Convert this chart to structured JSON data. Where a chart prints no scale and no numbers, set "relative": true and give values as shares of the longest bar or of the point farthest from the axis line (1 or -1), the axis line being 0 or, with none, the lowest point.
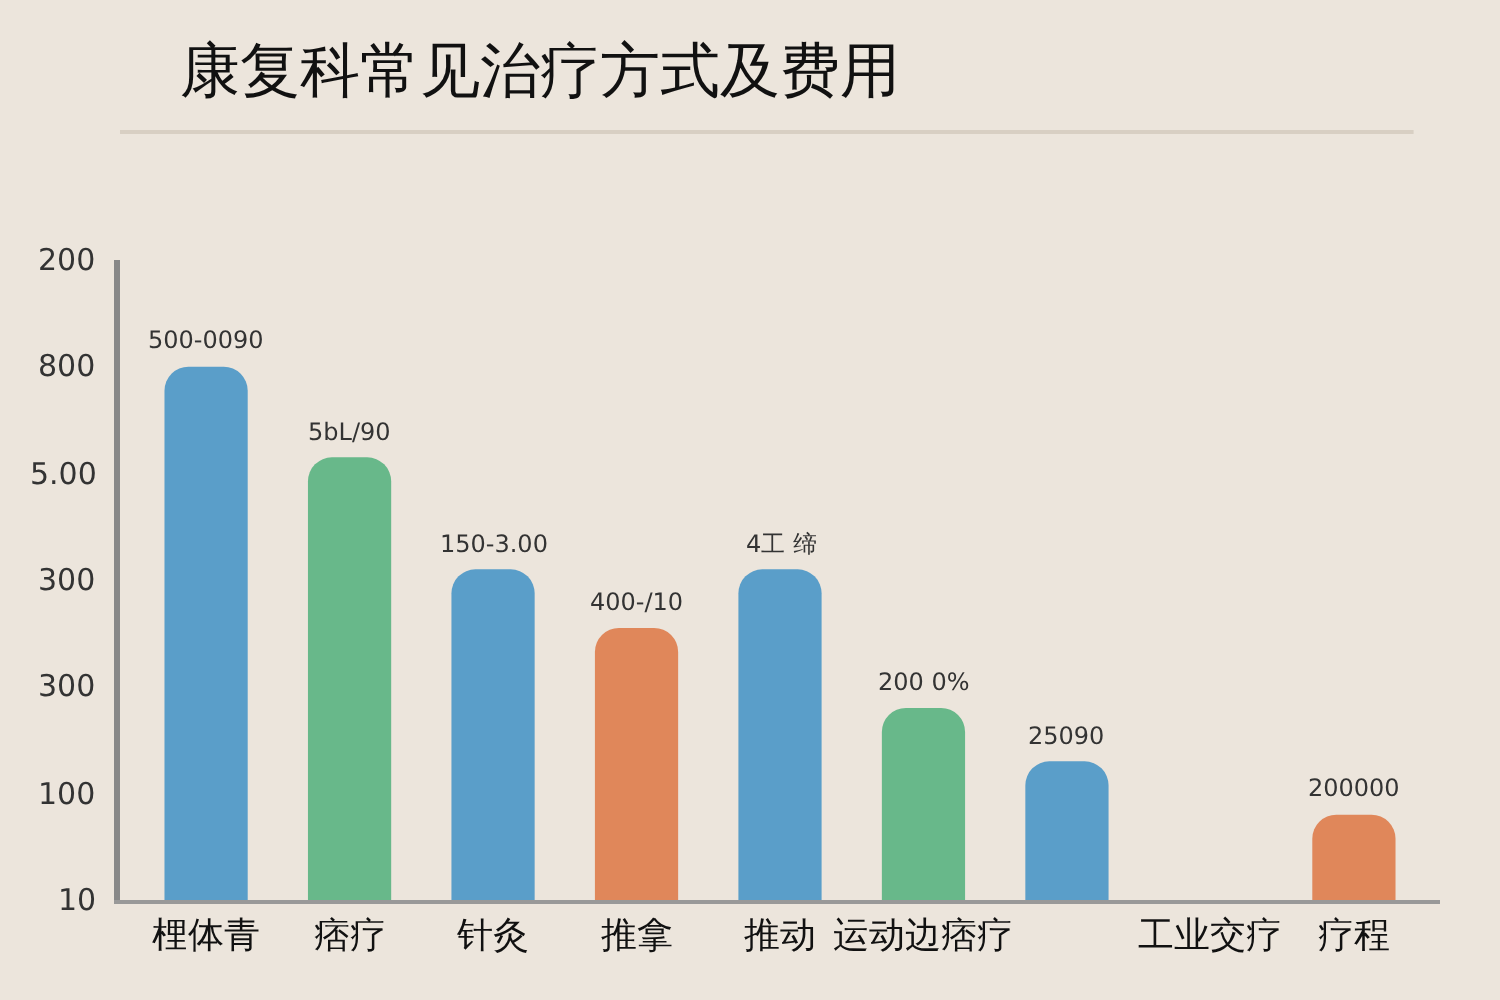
{
  "chart_data": {
    "type": "bar",
    "title": "康复科常见治疗方式及费用",
    "relative": true,
    "categories": [
      "梩体青",
      "痞疗",
      "针灸",
      "推拿",
      "推动",
      "运动边痞疗",
      null,
      "工业交疗",
      "疗程"
    ],
    "values": [
      1,
      0.83,
      0.62,
      0.51,
      0.62,
      0.36,
      0.26,
      null,
      0.16
    ],
    "colors": [
      "#5a9ec9",
      "#68b88a",
      "#5a9ec9",
      "#e0875a",
      "#5a9ec9",
      "#68b88a",
      "#5a9ec9",
      null,
      "#e0875a"
    ],
    "annotations": [
      "200",
      "800",
      "5.00",
      "300",
      "300",
      "100",
      "10",
      {
        "text": "500-0090",
        "x": "梩体青",
        "y": 1
      },
      {
        "text": "5bL/90",
        "x": "痞疗",
        "y": 0.83
      },
      {
        "text": "150-3.00",
        "x": "针灸",
        "y": 0.62
      },
      {
        "text": "400-/10",
        "x": "推拿",
        "y": 0.51
      },
      {
        "text": "4工 缔",
        "x": "推动",
        "y": 0.62
      },
      {
        "text": "200 0%",
        "x": "运动边痞疗",
        "y": 0.36
      },
      {
        "text": "25090",
        "y": 0.26
      },
      {
        "text": "200000",
        "x": "疗程",
        "y": 0.16
      }
    ],
    "grid": false
  }
}
